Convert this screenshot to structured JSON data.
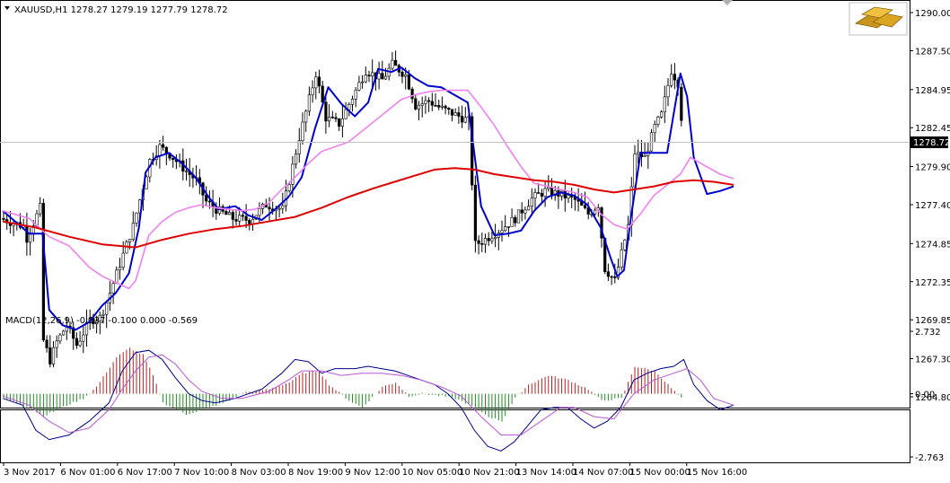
{
  "window": {
    "symbol_header": "XAUUSD,H1  1278.27 1279.19 1277.79 1278.72",
    "indicator_header": "MACD(12,26,9) -0.537 -0.100 0.000 -0.569",
    "logo_icon": "gold-bars-icon"
  },
  "colors": {
    "background": "#ffffff",
    "frame": "#000000",
    "candles": "#000000",
    "ma_fast": "#0000cd",
    "ma_mid": "#ee82ee",
    "ma_slow": "#dd0000",
    "hist_up": "#b22222",
    "hist_down": "#228b22",
    "macd_main": "#00008b",
    "macd_signal": "#ba55d3",
    "price_tag_bg": "#000000",
    "price_tag_text": "#ffffff"
  },
  "chart_data": {
    "type": "candlestick",
    "price_axis": {
      "ylim": [
        1264.8,
        1290.0
      ],
      "tick_labels": [
        "1290.00",
        "1287.50",
        "1284.95",
        "1282.45",
        "1279.90",
        "1277.40",
        "1274.85",
        "1272.35",
        "1269.85",
        "1267.30",
        "1264.80"
      ],
      "current_price": "1278.72"
    },
    "macd_axis": {
      "ylim": [
        -2.763,
        2.732
      ],
      "tick_labels": [
        "2.732",
        "0.00",
        "-2.763"
      ]
    },
    "time_axis": {
      "tick_labels": [
        "3 Nov 2017",
        "6 Nov 01:00",
        "6 Nov 17:00",
        "7 Nov 10:00",
        "8 Nov 03:00",
        "8 Nov 19:00",
        "9 Nov 12:00",
        "10 Nov 05:00",
        "10 Nov 21:00",
        "13 Nov 14:00",
        "14 Nov 07:00",
        "15 Nov 00:00",
        "15 Nov 16:00"
      ]
    },
    "bars_count": 205,
    "price_path": [
      [
        0,
        1276.5
      ],
      [
        7,
        1276
      ],
      [
        8,
        1275.2
      ],
      [
        10,
        1276.2
      ],
      [
        12,
        1277.2
      ],
      [
        13,
        1268.5
      ],
      [
        15,
        1267.2
      ],
      [
        17,
        1268.4
      ],
      [
        20,
        1269.5
      ],
      [
        23,
        1268.2
      ],
      [
        27,
        1269.8
      ],
      [
        30,
        1270
      ],
      [
        32,
        1271
      ],
      [
        40,
        1276
      ],
      [
        45,
        1280.3
      ],
      [
        48,
        1281.2
      ],
      [
        51,
        1280.7
      ],
      [
        56,
        1279.6
      ],
      [
        59,
        1279
      ],
      [
        62,
        1277.6
      ],
      [
        65,
        1277.1
      ],
      [
        70,
        1276.5
      ],
      [
        75,
        1276.4
      ],
      [
        80,
        1277.4
      ],
      [
        85,
        1277.1
      ],
      [
        90,
        1281.8
      ],
      [
        95,
        1286
      ],
      [
        98,
        1283.1
      ],
      [
        102,
        1282.7
      ],
      [
        105,
        1284
      ],
      [
        110,
        1286.2
      ],
      [
        115,
        1285.6
      ],
      [
        118,
        1286.6
      ],
      [
        122,
        1285.9
      ],
      [
        125,
        1283.9
      ],
      [
        129,
        1284.2
      ],
      [
        132,
        1283.8
      ],
      [
        136,
        1283.4
      ],
      [
        141,
        1282.9
      ],
      [
        143,
        1274.8
      ],
      [
        145,
        1275
      ],
      [
        150,
        1275.7
      ],
      [
        155,
        1276.5
      ],
      [
        160,
        1277.8
      ],
      [
        164,
        1278.3
      ],
      [
        168,
        1278.1
      ],
      [
        173,
        1277.7
      ],
      [
        177,
        1276.8
      ],
      [
        180,
        1277.4
      ],
      [
        182,
        1273.2
      ],
      [
        185,
        1272.4
      ],
      [
        189,
        1276
      ],
      [
        191,
        1280.8
      ],
      [
        194,
        1280.5
      ],
      [
        197,
        1282.5
      ],
      [
        199,
        1283.3
      ],
      [
        202,
        1286.2
      ],
      [
        204,
        1285.4
      ],
      [
        206,
        1280.9
      ],
      [
        208,
        1277.9
      ],
      [
        212,
        1277.8
      ],
      [
        216,
        1278.6
      ],
      [
        220,
        1278.7
      ]
    ],
    "series": [
      {
        "kind": "line",
        "role": "ma_fast",
        "points": [
          [
            0,
            1277
          ],
          [
            8,
            1275.5
          ],
          [
            12,
            1275.5
          ],
          [
            14,
            1270.5
          ],
          [
            18,
            1269.5
          ],
          [
            22,
            1269.2
          ],
          [
            26,
            1269.7
          ],
          [
            30,
            1270.8
          ],
          [
            34,
            1271.6
          ],
          [
            38,
            1272.9
          ],
          [
            41,
            1275.9
          ],
          [
            43,
            1279.5
          ],
          [
            46,
            1280.5
          ],
          [
            50,
            1280.8
          ],
          [
            54,
            1280.1
          ],
          [
            58,
            1279.2
          ],
          [
            62,
            1277.9
          ],
          [
            65,
            1277.1
          ],
          [
            70,
            1277.3
          ],
          [
            74,
            1276.7
          ],
          [
            78,
            1276.4
          ],
          [
            82,
            1277.1
          ],
          [
            86,
            1277.9
          ],
          [
            90,
            1279.2
          ],
          [
            94,
            1282.4
          ],
          [
            98,
            1285.1
          ],
          [
            102,
            1284
          ],
          [
            106,
            1283.2
          ],
          [
            110,
            1284.1
          ],
          [
            113,
            1286.3
          ],
          [
            117,
            1286.1
          ],
          [
            120,
            1286.4
          ],
          [
            124,
            1285.7
          ],
          [
            128,
            1285.2
          ],
          [
            132,
            1285.1
          ],
          [
            136,
            1284.6
          ],
          [
            140,
            1284.1
          ],
          [
            144,
            1277.3
          ],
          [
            148,
            1275.4
          ],
          [
            152,
            1275.5
          ],
          [
            156,
            1275.7
          ],
          [
            160,
            1277
          ],
          [
            164,
            1277.9
          ],
          [
            168,
            1278.2
          ],
          [
            172,
            1278
          ],
          [
            176,
            1277.4
          ],
          [
            180,
            1275.9
          ],
          [
            183,
            1273.9
          ],
          [
            185,
            1272.7
          ],
          [
            187,
            1273.1
          ],
          [
            189,
            1276.4
          ],
          [
            192,
            1280.8
          ],
          [
            196,
            1280.8
          ],
          [
            200,
            1280.8
          ],
          [
            204,
            1286
          ],
          [
            206,
            1284.5
          ],
          [
            208,
            1280.5
          ],
          [
            212,
            1278.1
          ],
          [
            216,
            1278.3
          ],
          [
            220,
            1278.6
          ]
        ]
      },
      {
        "kind": "line",
        "role": "ma_mid",
        "points": [
          [
            0,
            1277
          ],
          [
            8,
            1276.5
          ],
          [
            14,
            1275.3
          ],
          [
            20,
            1274.7
          ],
          [
            26,
            1273.3
          ],
          [
            30,
            1272.7
          ],
          [
            34,
            1272.3
          ],
          [
            38,
            1271.9
          ],
          [
            40,
            1272.4
          ],
          [
            44,
            1275.4
          ],
          [
            48,
            1276.3
          ],
          [
            52,
            1276.9
          ],
          [
            56,
            1277.2
          ],
          [
            60,
            1277.4
          ],
          [
            64,
            1277.2
          ],
          [
            68,
            1277.1
          ],
          [
            72,
            1277
          ],
          [
            76,
            1277.1
          ],
          [
            80,
            1277.5
          ],
          [
            84,
            1278.4
          ],
          [
            88,
            1279.2
          ],
          [
            92,
            1280.1
          ],
          [
            96,
            1280.9
          ],
          [
            100,
            1281.2
          ],
          [
            104,
            1281.5
          ],
          [
            108,
            1282.2
          ],
          [
            112,
            1282.9
          ],
          [
            116,
            1283.6
          ],
          [
            120,
            1284.3
          ],
          [
            124,
            1284.6
          ],
          [
            128,
            1284.8
          ],
          [
            132,
            1284.9
          ],
          [
            136,
            1284.9
          ],
          [
            140,
            1284.9
          ],
          [
            144,
            1283.8
          ],
          [
            148,
            1282.6
          ],
          [
            152,
            1281.2
          ],
          [
            156,
            1279.9
          ],
          [
            160,
            1278.8
          ],
          [
            164,
            1278.6
          ],
          [
            168,
            1278.4
          ],
          [
            172,
            1278.2
          ],
          [
            176,
            1277.9
          ],
          [
            180,
            1276.8
          ],
          [
            184,
            1276.1
          ],
          [
            188,
            1275.8
          ],
          [
            192,
            1276.8
          ],
          [
            196,
            1278
          ],
          [
            200,
            1278.7
          ],
          [
            204,
            1279.4
          ],
          [
            207,
            1280.5
          ],
          [
            211,
            1280
          ],
          [
            216,
            1279.4
          ],
          [
            220,
            1279.1
          ]
        ]
      },
      {
        "kind": "line",
        "role": "ma_slow",
        "points": [
          [
            0,
            1276.3
          ],
          [
            10,
            1275.9
          ],
          [
            20,
            1275.3
          ],
          [
            30,
            1274.8
          ],
          [
            40,
            1274.6
          ],
          [
            48,
            1275.1
          ],
          [
            56,
            1275.5
          ],
          [
            64,
            1275.8
          ],
          [
            72,
            1276
          ],
          [
            80,
            1276.3
          ],
          [
            88,
            1276.6
          ],
          [
            96,
            1277.2
          ],
          [
            104,
            1277.9
          ],
          [
            112,
            1278.5
          ],
          [
            118,
            1278.9
          ],
          [
            124,
            1279.3
          ],
          [
            130,
            1279.7
          ],
          [
            136,
            1279.8
          ],
          [
            142,
            1279.7
          ],
          [
            148,
            1279.4
          ],
          [
            154,
            1279.2
          ],
          [
            160,
            1279
          ],
          [
            166,
            1278.9
          ],
          [
            172,
            1278.7
          ],
          [
            178,
            1278.4
          ],
          [
            184,
            1278.2
          ],
          [
            190,
            1278.4
          ],
          [
            196,
            1278.6
          ],
          [
            202,
            1278.9
          ],
          [
            208,
            1279
          ],
          [
            214,
            1278.9
          ],
          [
            220,
            1278.7
          ]
        ]
      }
    ],
    "macd_histogram": [
      [
        0,
        -0.2
      ],
      [
        8,
        -0.6
      ],
      [
        12,
        -1.0
      ],
      [
        16,
        -0.7
      ],
      [
        24,
        -0.2
      ],
      [
        28,
        0.3
      ],
      [
        34,
        1.6
      ],
      [
        38,
        2.0
      ],
      [
        42,
        1.7
      ],
      [
        45,
        0.8
      ],
      [
        48,
        -0.4
      ],
      [
        55,
        -0.9
      ],
      [
        62,
        -0.6
      ],
      [
        68,
        -0.3
      ],
      [
        72,
        0.05
      ],
      [
        80,
        0.2
      ],
      [
        86,
        0.5
      ],
      [
        90,
        0.9
      ],
      [
        95,
        1.0
      ],
      [
        98,
        0.4
      ],
      [
        104,
        -0.3
      ],
      [
        108,
        -0.6
      ],
      [
        114,
        0.3
      ],
      [
        118,
        0.5
      ],
      [
        122,
        -0.1
      ],
      [
        126,
        0.0
      ],
      [
        132,
        -0.1
      ],
      [
        136,
        -0.2
      ],
      [
        142,
        -0.6
      ],
      [
        146,
        -1.0
      ],
      [
        150,
        -1.2
      ],
      [
        154,
        -0.2
      ],
      [
        158,
        0.4
      ],
      [
        164,
        0.8
      ],
      [
        170,
        0.6
      ],
      [
        176,
        0.2
      ],
      [
        180,
        -0.3
      ],
      [
        186,
        -0.2
      ],
      [
        190,
        1.2
      ],
      [
        196,
        1.0
      ],
      [
        200,
        0.4
      ],
      [
        204,
        -0.2
      ],
      [
        206,
        -1.0
      ],
      [
        210,
        -1.3
      ],
      [
        214,
        -1.0
      ],
      [
        218,
        -0.6
      ]
    ],
    "macd_main": [
      [
        0,
        -0.2
      ],
      [
        6,
        -0.5
      ],
      [
        10,
        -1.6
      ],
      [
        14,
        -2.0
      ],
      [
        20,
        -1.8
      ],
      [
        26,
        -1.2
      ],
      [
        32,
        -0.4
      ],
      [
        36,
        1.0
      ],
      [
        40,
        1.8
      ],
      [
        44,
        1.9
      ],
      [
        48,
        1.5
      ],
      [
        52,
        0.7
      ],
      [
        56,
        0.0
      ],
      [
        60,
        -0.3
      ],
      [
        64,
        -0.4
      ],
      [
        70,
        -0.2
      ],
      [
        78,
        0.2
      ],
      [
        84,
        0.9
      ],
      [
        88,
        1.5
      ],
      [
        92,
        1.4
      ],
      [
        96,
        0.9
      ],
      [
        100,
        1.1
      ],
      [
        106,
        1.1
      ],
      [
        110,
        1.2
      ],
      [
        114,
        1.1
      ],
      [
        118,
        1.0
      ],
      [
        124,
        0.7
      ],
      [
        130,
        0.4
      ],
      [
        134,
        0.0
      ],
      [
        138,
        -0.6
      ],
      [
        142,
        -1.6
      ],
      [
        146,
        -2.3
      ],
      [
        150,
        -2.5
      ],
      [
        154,
        -2.1
      ],
      [
        158,
        -1.4
      ],
      [
        162,
        -0.7
      ],
      [
        166,
        -0.6
      ],
      [
        170,
        -0.6
      ],
      [
        174,
        -1.1
      ],
      [
        178,
        -1.5
      ],
      [
        182,
        -1.2
      ],
      [
        186,
        -0.6
      ],
      [
        190,
        0.6
      ],
      [
        194,
        0.9
      ],
      [
        198,
        1.1
      ],
      [
        202,
        1.2
      ],
      [
        205,
        1.5
      ],
      [
        208,
        0.4
      ],
      [
        212,
        -0.3
      ],
      [
        216,
        -0.7
      ],
      [
        220,
        -0.5
      ]
    ],
    "macd_signal": [
      [
        0,
        -0.1
      ],
      [
        8,
        -0.5
      ],
      [
        14,
        -1.2
      ],
      [
        20,
        -1.7
      ],
      [
        26,
        -1.5
      ],
      [
        32,
        -0.7
      ],
      [
        36,
        0.2
      ],
      [
        40,
        1.0
      ],
      [
        44,
        1.6
      ],
      [
        48,
        1.7
      ],
      [
        52,
        1.3
      ],
      [
        56,
        0.6
      ],
      [
        60,
        0.1
      ],
      [
        66,
        -0.2
      ],
      [
        72,
        -0.2
      ],
      [
        80,
        0.1
      ],
      [
        86,
        0.6
      ],
      [
        90,
        1.0
      ],
      [
        96,
        1.0
      ],
      [
        102,
        0.8
      ],
      [
        108,
        0.9
      ],
      [
        114,
        0.9
      ],
      [
        120,
        0.8
      ],
      [
        126,
        0.6
      ],
      [
        132,
        0.3
      ],
      [
        138,
        -0.1
      ],
      [
        144,
        -1.0
      ],
      [
        150,
        -1.8
      ],
      [
        156,
        -1.8
      ],
      [
        162,
        -1.2
      ],
      [
        168,
        -0.6
      ],
      [
        172,
        -0.6
      ],
      [
        178,
        -1.0
      ],
      [
        184,
        -1.1
      ],
      [
        190,
        0.0
      ],
      [
        196,
        0.6
      ],
      [
        202,
        0.9
      ],
      [
        206,
        1.1
      ],
      [
        210,
        0.6
      ],
      [
        214,
        -0.2
      ],
      [
        218,
        -0.4
      ],
      [
        220,
        -0.5
      ]
    ]
  }
}
